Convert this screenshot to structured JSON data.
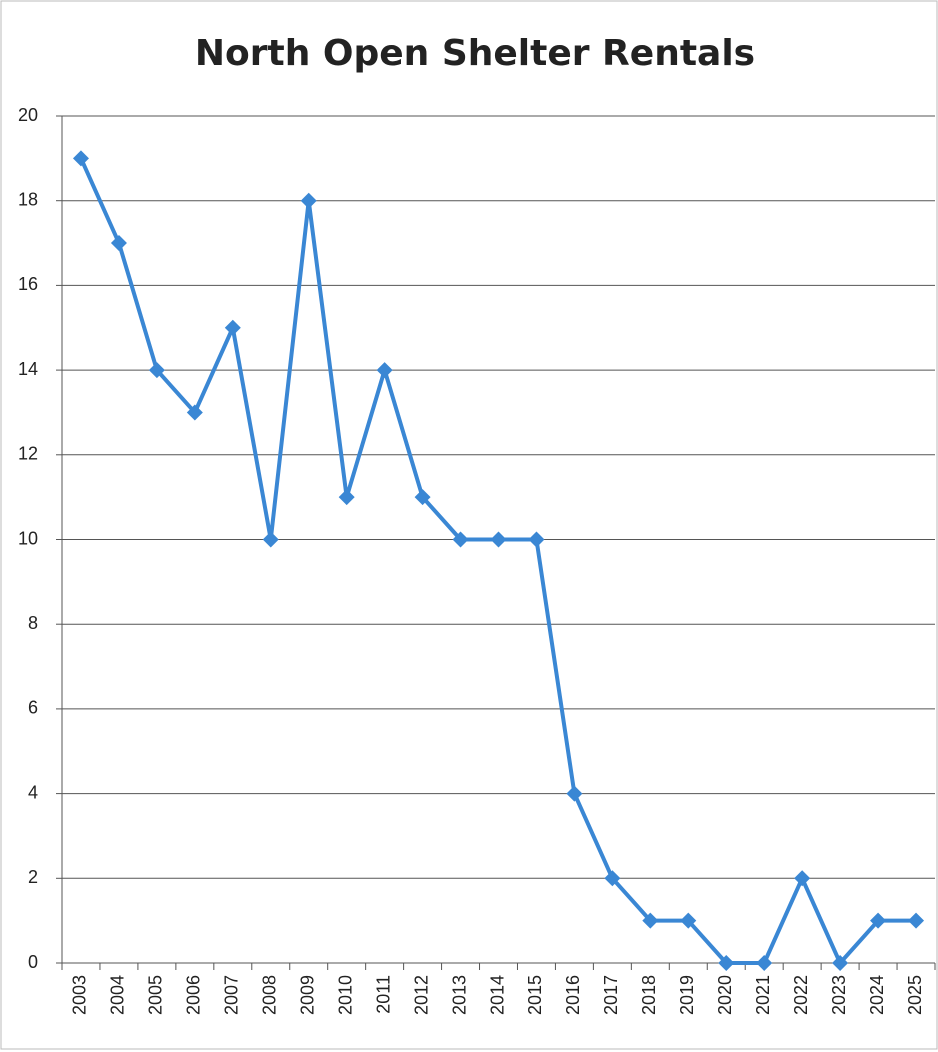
{
  "chart_data": {
    "type": "line",
    "title": "North Open Shelter Rentals",
    "categories": [
      "2003",
      "2004",
      "2005",
      "2006",
      "2007",
      "2008",
      "2009",
      "2010",
      "2011",
      "2012",
      "2013",
      "2014",
      "2015",
      "2016",
      "2017",
      "2018",
      "2019",
      "2020",
      "2021",
      "2022",
      "2023",
      "2024",
      "2025"
    ],
    "series": [
      {
        "color": "#3a87d4",
        "values": [
          19,
          17,
          14,
          13,
          15,
          10,
          18,
          11,
          14,
          11,
          10,
          10,
          10,
          4,
          2,
          1,
          1,
          0,
          0,
          2,
          0,
          1,
          1
        ]
      }
    ],
    "ylim": [
      0,
      20
    ],
    "yticks": [
      0,
      2,
      4,
      6,
      8,
      10,
      12,
      14,
      16,
      18,
      20
    ],
    "grid": true
  }
}
